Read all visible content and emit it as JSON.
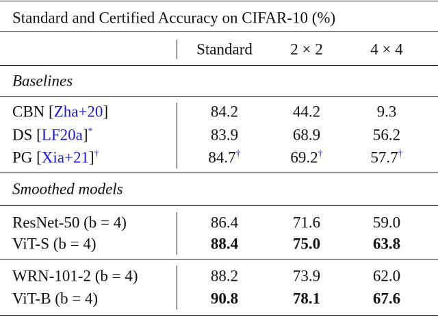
{
  "title": "Standard and Certified Accuracy on CIFAR-10 (%)",
  "header": {
    "columns": [
      "Standard",
      "2 × 2",
      "4 × 4"
    ]
  },
  "sections": [
    {
      "label": "Baselines",
      "rows": [
        {
          "label": [
            "CBN [",
            "Zha+20",
            "]"
          ],
          "cells": [
            "84.2",
            "44.2",
            "9.3"
          ]
        },
        {
          "label": [
            "DS [",
            "LF20a",
            "]"
          ],
          "label_note": "*",
          "cells": [
            "83.9",
            "68.9",
            "56.2"
          ]
        },
        {
          "label": [
            "PG [",
            "Xia+21",
            "]"
          ],
          "label_note": "†",
          "cells": [
            "84.7",
            "69.2",
            "57.7"
          ],
          "cell_note": "†"
        }
      ]
    },
    {
      "label": "Smoothed models",
      "rows": [
        {
          "label": "ResNet-50 (b = 4)",
          "cells": [
            "86.4",
            "71.6",
            "59.0"
          ]
        },
        {
          "label": "ViT-S (b = 4)",
          "cells": [
            "88.4",
            "75.0",
            "63.8"
          ],
          "bold": true
        }
      ]
    },
    {
      "rows": [
        {
          "label": "WRN-101-2 (b = 4)",
          "cells": [
            "88.2",
            "73.9",
            "62.0"
          ]
        },
        {
          "label": "ViT-B (b = 4)",
          "cells": [
            "90.8",
            "78.1",
            "67.6"
          ],
          "bold": true
        }
      ]
    }
  ]
}
